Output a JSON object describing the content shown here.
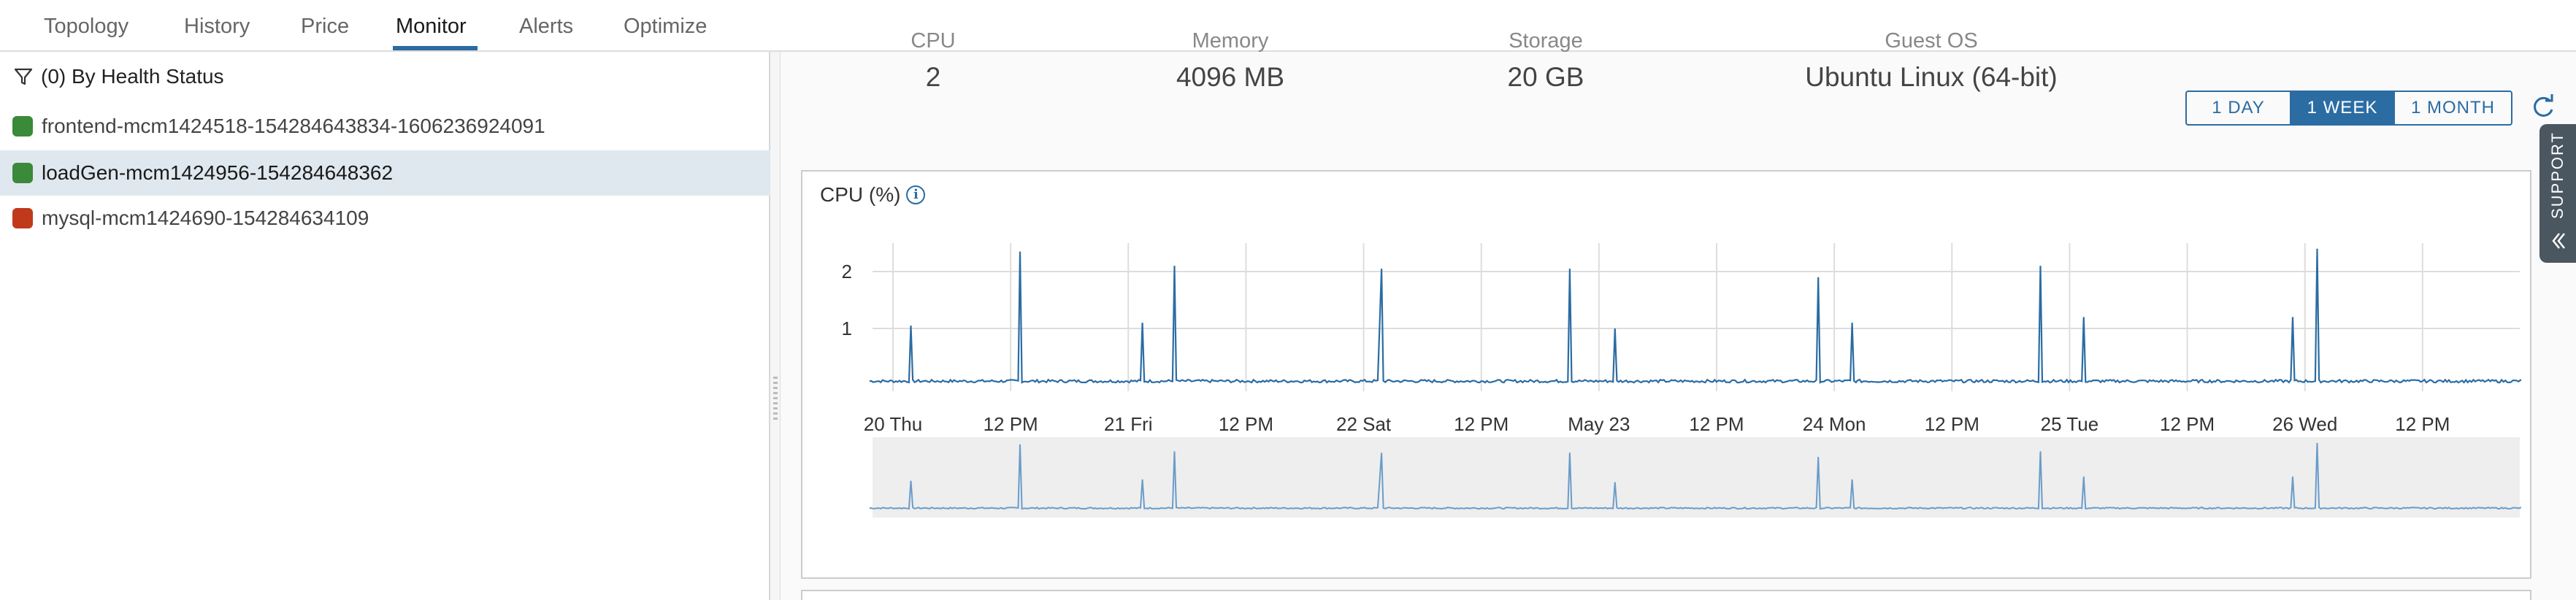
{
  "tabs": [
    {
      "label": "Topology"
    },
    {
      "label": "History"
    },
    {
      "label": "Price"
    },
    {
      "label": "Monitor",
      "active": true
    },
    {
      "label": "Alerts"
    },
    {
      "label": "Optimize"
    }
  ],
  "filter": {
    "label": "(0) By Health Status",
    "icon": "filter-icon"
  },
  "vms": [
    {
      "name": "frontend-mcm1424518-154284643834-1606236924091",
      "status_color": "#3a8a3a"
    },
    {
      "name": "loadGen-mcm1424956-154284648362",
      "status_color": "#3a8a3a",
      "selected": true
    },
    {
      "name": "mysql-mcm1424690-154284634109",
      "status_color": "#c0391b"
    }
  ],
  "stats": {
    "cpu": {
      "label": "CPU",
      "value": "2"
    },
    "memory": {
      "label": "Memory",
      "value": "4096 MB"
    },
    "storage": {
      "label": "Storage",
      "value": "20 GB"
    },
    "guest_os": {
      "label": "Guest OS",
      "value": "Ubuntu Linux (64-bit)"
    }
  },
  "range_buttons": {
    "day": "1 DAY",
    "week": "1 WEEK",
    "month": "1 MONTH",
    "selected": "1 WEEK"
  },
  "panel": {
    "title": "CPU (%)",
    "info_glyph": "i"
  },
  "support": {
    "label": "SUPPORT"
  },
  "colors": {
    "accent": "#2b6ca3",
    "line": "#2b6ca3",
    "navigator_line": "#6a9cc9"
  },
  "chart_data": {
    "type": "line",
    "title": "CPU (%)",
    "xlabel": "",
    "ylabel": "",
    "ylim": [
      0,
      2.5
    ],
    "yticks": [
      "1",
      "2"
    ],
    "xticks": [
      "20 Thu",
      "12 PM",
      "21 Fri",
      "12 PM",
      "22 Sat",
      "12 PM",
      "May 23",
      "12 PM",
      "24 Mon",
      "12 PM",
      "25 Tue",
      "12 PM",
      "26 Wed",
      "12 PM"
    ],
    "baseline": 0.05,
    "spikes": [
      {
        "day": 0.08,
        "value": 1.05
      },
      {
        "day": 0.54,
        "value": 2.35
      },
      {
        "day": 1.06,
        "value": 1.1
      },
      {
        "day": 1.2,
        "value": 2.1
      },
      {
        "day": 2.07,
        "value": 1.05
      },
      {
        "day": 2.08,
        "value": 2.05
      },
      {
        "day": 2.88,
        "value": 2.05
      },
      {
        "day": 3.07,
        "value": 1.0
      },
      {
        "day": 3.93,
        "value": 1.9
      },
      {
        "day": 4.08,
        "value": 1.1
      },
      {
        "day": 4.88,
        "value": 2.1
      },
      {
        "day": 5.06,
        "value": 1.2
      },
      {
        "day": 5.95,
        "value": 1.2
      },
      {
        "day": 6.05,
        "value": 2.4
      }
    ],
    "grid": true,
    "navigator": true
  }
}
